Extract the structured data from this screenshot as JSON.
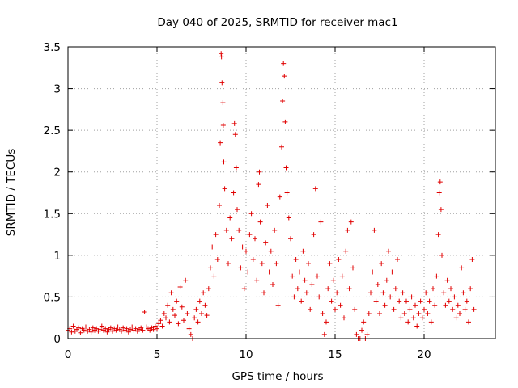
{
  "chart_data": {
    "type": "scatter",
    "title": "Day 040 of 2025, SRMTID for receiver mac1",
    "xlabel": "GPS time / hours",
    "ylabel": "SRMTID / TECUs",
    "xlim": [
      0,
      24
    ],
    "ylim": [
      0,
      3.5
    ],
    "xticks": [
      0,
      5,
      10,
      15,
      20
    ],
    "yticks": [
      0,
      0.5,
      1,
      1.5,
      2,
      2.5,
      3,
      3.5
    ],
    "xtick_labels": [
      "0",
      "5",
      "10",
      "15",
      "20"
    ],
    "ytick_labels": [
      "0",
      "0.5",
      "1",
      "1.5",
      "2",
      "2.5",
      "3",
      "3.5"
    ],
    "grid": true,
    "marker": "+",
    "color": "#e00000",
    "series": [
      {
        "name": "mac1",
        "points": [
          [
            0.0,
            0.1
          ],
          [
            0.1,
            0.12
          ],
          [
            0.2,
            0.08
          ],
          [
            0.3,
            0.15
          ],
          [
            0.4,
            0.09
          ],
          [
            0.5,
            0.11
          ],
          [
            0.6,
            0.13
          ],
          [
            0.7,
            0.07
          ],
          [
            0.8,
            0.12
          ],
          [
            0.9,
            0.1
          ],
          [
            1.0,
            0.14
          ],
          [
            1.1,
            0.09
          ],
          [
            1.2,
            0.11
          ],
          [
            1.3,
            0.08
          ],
          [
            1.4,
            0.13
          ],
          [
            1.5,
            0.1
          ],
          [
            1.6,
            0.12
          ],
          [
            1.7,
            0.09
          ],
          [
            1.8,
            0.11
          ],
          [
            1.9,
            0.15
          ],
          [
            2.0,
            0.1
          ],
          [
            2.1,
            0.12
          ],
          [
            2.2,
            0.08
          ],
          [
            2.3,
            0.11
          ],
          [
            2.4,
            0.13
          ],
          [
            2.5,
            0.09
          ],
          [
            2.6,
            0.12
          ],
          [
            2.7,
            0.1
          ],
          [
            2.8,
            0.14
          ],
          [
            2.9,
            0.11
          ],
          [
            3.0,
            0.09
          ],
          [
            3.1,
            0.13
          ],
          [
            3.2,
            0.1
          ],
          [
            3.3,
            0.12
          ],
          [
            3.4,
            0.08
          ],
          [
            3.5,
            0.11
          ],
          [
            3.6,
            0.14
          ],
          [
            3.7,
            0.1
          ],
          [
            3.8,
            0.12
          ],
          [
            3.9,
            0.09
          ],
          [
            4.0,
            0.11
          ],
          [
            4.1,
            0.13
          ],
          [
            4.2,
            0.1
          ],
          [
            4.3,
            0.32
          ],
          [
            4.4,
            0.14
          ],
          [
            4.5,
            0.12
          ],
          [
            4.6,
            0.1
          ],
          [
            4.7,
            0.13
          ],
          [
            4.8,
            0.11
          ],
          [
            4.9,
            0.15
          ],
          [
            5.0,
            0.12
          ],
          [
            5.1,
            0.18
          ],
          [
            5.2,
            0.22
          ],
          [
            5.3,
            0.15
          ],
          [
            5.4,
            0.3
          ],
          [
            5.5,
            0.25
          ],
          [
            5.6,
            0.4
          ],
          [
            5.7,
            0.2
          ],
          [
            5.8,
            0.55
          ],
          [
            5.9,
            0.35
          ],
          [
            6.0,
            0.28
          ],
          [
            6.1,
            0.45
          ],
          [
            6.2,
            0.18
          ],
          [
            6.3,
            0.62
          ],
          [
            6.4,
            0.38
          ],
          [
            6.5,
            0.22
          ],
          [
            6.6,
            0.7
          ],
          [
            6.7,
            0.3
          ],
          [
            6.8,
            0.12
          ],
          [
            6.9,
            0.05
          ],
          [
            7.0,
            0.0
          ],
          [
            7.1,
            0.25
          ],
          [
            7.2,
            0.35
          ],
          [
            7.3,
            0.2
          ],
          [
            7.4,
            0.45
          ],
          [
            7.5,
            0.3
          ],
          [
            7.6,
            0.55
          ],
          [
            7.7,
            0.4
          ],
          [
            7.8,
            0.28
          ],
          [
            7.9,
            0.6
          ],
          [
            8.0,
            0.85
          ],
          [
            8.1,
            1.1
          ],
          [
            8.2,
            0.75
          ],
          [
            8.3,
            1.25
          ],
          [
            8.4,
            0.95
          ],
          [
            8.5,
            1.6
          ],
          [
            8.55,
            2.35
          ],
          [
            8.6,
            3.42
          ],
          [
            8.62,
            3.38
          ],
          [
            8.65,
            3.07
          ],
          [
            8.7,
            2.83
          ],
          [
            8.72,
            2.56
          ],
          [
            8.75,
            2.12
          ],
          [
            8.8,
            1.8
          ],
          [
            8.9,
            1.3
          ],
          [
            9.0,
            0.9
          ],
          [
            9.1,
            1.45
          ],
          [
            9.2,
            1.2
          ],
          [
            9.3,
            1.75
          ],
          [
            9.35,
            2.58
          ],
          [
            9.4,
            2.45
          ],
          [
            9.45,
            2.05
          ],
          [
            9.5,
            1.55
          ],
          [
            9.6,
            1.3
          ],
          [
            9.7,
            0.85
          ],
          [
            9.8,
            1.1
          ],
          [
            9.9,
            0.6
          ],
          [
            10.0,
            1.05
          ],
          [
            10.1,
            0.8
          ],
          [
            10.2,
            1.25
          ],
          [
            10.3,
            1.5
          ],
          [
            10.4,
            0.95
          ],
          [
            10.5,
            1.2
          ],
          [
            10.6,
            0.7
          ],
          [
            10.7,
            1.85
          ],
          [
            10.75,
            2.0
          ],
          [
            10.8,
            1.4
          ],
          [
            10.9,
            0.9
          ],
          [
            11.0,
            0.55
          ],
          [
            11.1,
            1.15
          ],
          [
            11.2,
            1.6
          ],
          [
            11.3,
            0.8
          ],
          [
            11.4,
            1.05
          ],
          [
            11.5,
            0.65
          ],
          [
            11.6,
            1.3
          ],
          [
            11.7,
            0.9
          ],
          [
            11.8,
            0.4
          ],
          [
            11.9,
            1.7
          ],
          [
            12.0,
            2.3
          ],
          [
            12.05,
            2.85
          ],
          [
            12.1,
            3.3
          ],
          [
            12.15,
            3.15
          ],
          [
            12.2,
            2.6
          ],
          [
            12.25,
            2.05
          ],
          [
            12.3,
            1.75
          ],
          [
            12.4,
            1.45
          ],
          [
            12.5,
            1.2
          ],
          [
            12.6,
            0.75
          ],
          [
            12.7,
            0.5
          ],
          [
            12.8,
            0.95
          ],
          [
            12.9,
            0.6
          ],
          [
            13.0,
            0.8
          ],
          [
            13.1,
            0.45
          ],
          [
            13.2,
            1.05
          ],
          [
            13.3,
            0.7
          ],
          [
            13.4,
            0.55
          ],
          [
            13.5,
            0.9
          ],
          [
            13.6,
            0.35
          ],
          [
            13.7,
            0.65
          ],
          [
            13.8,
            1.25
          ],
          [
            13.9,
            1.8
          ],
          [
            14.0,
            0.75
          ],
          [
            14.1,
            0.5
          ],
          [
            14.2,
            1.4
          ],
          [
            14.3,
            0.3
          ],
          [
            14.4,
            0.05
          ],
          [
            14.5,
            0.2
          ],
          [
            14.6,
            0.6
          ],
          [
            14.7,
            0.9
          ],
          [
            14.8,
            0.45
          ],
          [
            14.9,
            0.7
          ],
          [
            15.0,
            0.35
          ],
          [
            15.1,
            0.55
          ],
          [
            15.2,
            0.95
          ],
          [
            15.3,
            0.4
          ],
          [
            15.4,
            0.75
          ],
          [
            15.5,
            0.25
          ],
          [
            15.6,
            1.05
          ],
          [
            15.7,
            1.3
          ],
          [
            15.8,
            0.6
          ],
          [
            15.9,
            1.4
          ],
          [
            16.0,
            0.85
          ],
          [
            16.1,
            0.35
          ],
          [
            16.2,
            0.05
          ],
          [
            16.3,
            0.0
          ],
          [
            16.4,
            0.0
          ],
          [
            16.5,
            0.1
          ],
          [
            16.6,
            0.2
          ],
          [
            16.7,
            0.0
          ],
          [
            16.8,
            0.05
          ],
          [
            16.9,
            0.3
          ],
          [
            17.0,
            0.55
          ],
          [
            17.1,
            0.8
          ],
          [
            17.2,
            1.3
          ],
          [
            17.3,
            0.45
          ],
          [
            17.4,
            0.65
          ],
          [
            17.5,
            0.3
          ],
          [
            17.6,
            0.9
          ],
          [
            17.7,
            0.55
          ],
          [
            17.8,
            0.4
          ],
          [
            17.9,
            0.7
          ],
          [
            18.0,
            1.05
          ],
          [
            18.1,
            0.5
          ],
          [
            18.2,
            0.8
          ],
          [
            18.3,
            0.35
          ],
          [
            18.4,
            0.6
          ],
          [
            18.5,
            0.95
          ],
          [
            18.6,
            0.45
          ],
          [
            18.7,
            0.25
          ],
          [
            18.8,
            0.55
          ],
          [
            18.9,
            0.3
          ],
          [
            19.0,
            0.45
          ],
          [
            19.1,
            0.2
          ],
          [
            19.2,
            0.35
          ],
          [
            19.3,
            0.5
          ],
          [
            19.4,
            0.25
          ],
          [
            19.5,
            0.4
          ],
          [
            19.6,
            0.15
          ],
          [
            19.7,
            0.3
          ],
          [
            19.8,
            0.45
          ],
          [
            19.9,
            0.25
          ],
          [
            20.0,
            0.35
          ],
          [
            20.1,
            0.55
          ],
          [
            20.2,
            0.3
          ],
          [
            20.3,
            0.45
          ],
          [
            20.4,
            0.2
          ],
          [
            20.5,
            0.6
          ],
          [
            20.6,
            0.4
          ],
          [
            20.7,
            0.75
          ],
          [
            20.8,
            1.25
          ],
          [
            20.85,
            1.75
          ],
          [
            20.9,
            1.88
          ],
          [
            20.95,
            1.55
          ],
          [
            21.0,
            1.0
          ],
          [
            21.1,
            0.55
          ],
          [
            21.2,
            0.4
          ],
          [
            21.3,
            0.7
          ],
          [
            21.4,
            0.45
          ],
          [
            21.5,
            0.6
          ],
          [
            21.6,
            0.35
          ],
          [
            21.7,
            0.5
          ],
          [
            21.8,
            0.25
          ],
          [
            21.9,
            0.4
          ],
          [
            22.0,
            0.3
          ],
          [
            22.1,
            0.85
          ],
          [
            22.2,
            0.55
          ],
          [
            22.3,
            0.35
          ],
          [
            22.4,
            0.45
          ],
          [
            22.5,
            0.2
          ],
          [
            22.6,
            0.6
          ],
          [
            22.7,
            0.95
          ],
          [
            22.8,
            0.35
          ]
        ]
      }
    ]
  }
}
